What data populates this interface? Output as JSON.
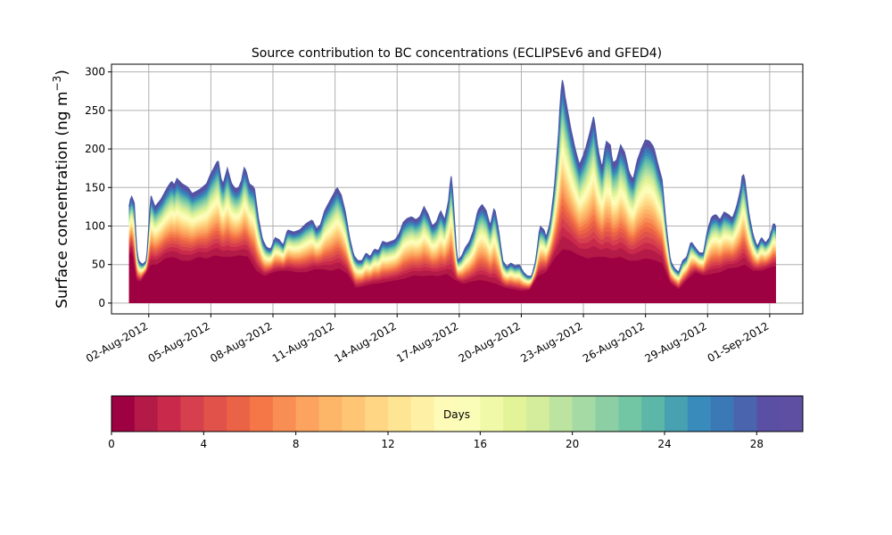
{
  "chart_data": {
    "type": "area",
    "title": "Source contribution to BC concentrations (ECLIPSEv6 and GFED4)",
    "ylabel_main": "Surface concentration (ng m",
    "ylabel_sup": "−3",
    "ylabel_close": ")",
    "xlabel": "",
    "ylim": [
      -14,
      310
    ],
    "xlim_days": [
      0.2,
      33.6
    ],
    "yticks": [
      0,
      50,
      100,
      150,
      200,
      250,
      300
    ],
    "xticks": [
      {
        "day": 2,
        "label": "02-Aug-2012"
      },
      {
        "day": 5,
        "label": "05-Aug-2012"
      },
      {
        "day": 8,
        "label": "08-Aug-2012"
      },
      {
        "day": 11,
        "label": "11-Aug-2012"
      },
      {
        "day": 14,
        "label": "14-Aug-2012"
      },
      {
        "day": 17,
        "label": "17-Aug-2012"
      },
      {
        "day": 20,
        "label": "20-Aug-2012"
      },
      {
        "day": 23,
        "label": "23-Aug-2012"
      },
      {
        "day": 26,
        "label": "26-Aug-2012"
      },
      {
        "day": 29,
        "label": "29-Aug-2012"
      },
      {
        "day": 32,
        "label": "01-Sep-2012"
      }
    ],
    "grid": true,
    "x_unit": "day of August 2012",
    "total": [
      [
        1.05,
        125
      ],
      [
        1.15,
        140
      ],
      [
        1.3,
        130
      ],
      [
        1.4,
        75
      ],
      [
        1.5,
        55
      ],
      [
        1.7,
        50
      ],
      [
        1.9,
        55
      ],
      [
        2.0,
        100
      ],
      [
        2.1,
        140
      ],
      [
        2.3,
        125
      ],
      [
        2.6,
        135
      ],
      [
        2.9,
        150
      ],
      [
        3.1,
        158
      ],
      [
        3.25,
        153
      ],
      [
        3.35,
        162
      ],
      [
        3.6,
        155
      ],
      [
        3.9,
        150
      ],
      [
        4.1,
        142
      ],
      [
        4.3,
        145
      ],
      [
        4.5,
        148
      ],
      [
        4.8,
        155
      ],
      [
        5.0,
        168
      ],
      [
        5.2,
        178
      ],
      [
        5.35,
        186
      ],
      [
        5.5,
        160
      ],
      [
        5.6,
        155
      ],
      [
        5.8,
        175
      ],
      [
        6.0,
        155
      ],
      [
        6.2,
        148
      ],
      [
        6.35,
        150
      ],
      [
        6.5,
        160
      ],
      [
        6.6,
        176
      ],
      [
        6.7,
        172
      ],
      [
        6.85,
        155
      ],
      [
        7.1,
        150
      ],
      [
        7.3,
        110
      ],
      [
        7.5,
        82
      ],
      [
        7.7,
        72
      ],
      [
        7.9,
        70
      ],
      [
        8.1,
        85
      ],
      [
        8.3,
        82
      ],
      [
        8.5,
        75
      ],
      [
        8.7,
        95
      ],
      [
        9.0,
        92
      ],
      [
        9.3,
        95
      ],
      [
        9.6,
        103
      ],
      [
        9.9,
        108
      ],
      [
        10.1,
        96
      ],
      [
        10.3,
        102
      ],
      [
        10.5,
        120
      ],
      [
        10.7,
        130
      ],
      [
        10.9,
        140
      ],
      [
        11.1,
        150
      ],
      [
        11.3,
        140
      ],
      [
        11.5,
        118
      ],
      [
        11.7,
        85
      ],
      [
        11.9,
        62
      ],
      [
        12.1,
        55
      ],
      [
        12.3,
        55
      ],
      [
        12.5,
        65
      ],
      [
        12.7,
        60
      ],
      [
        12.9,
        70
      ],
      [
        13.1,
        68
      ],
      [
        13.3,
        80
      ],
      [
        13.5,
        78
      ],
      [
        13.7,
        80
      ],
      [
        13.9,
        82
      ],
      [
        14.1,
        90
      ],
      [
        14.3,
        105
      ],
      [
        14.5,
        110
      ],
      [
        14.7,
        112
      ],
      [
        14.9,
        108
      ],
      [
        15.1,
        112
      ],
      [
        15.3,
        125
      ],
      [
        15.5,
        115
      ],
      [
        15.7,
        100
      ],
      [
        15.9,
        105
      ],
      [
        16.1,
        120
      ],
      [
        16.3,
        108
      ],
      [
        16.5,
        135
      ],
      [
        16.6,
        168
      ],
      [
        16.7,
        140
      ],
      [
        16.8,
        95
      ],
      [
        16.9,
        55
      ],
      [
        17.1,
        60
      ],
      [
        17.3,
        72
      ],
      [
        17.5,
        80
      ],
      [
        17.7,
        95
      ],
      [
        17.9,
        120
      ],
      [
        18.1,
        128
      ],
      [
        18.3,
        120
      ],
      [
        18.5,
        100
      ],
      [
        18.7,
        125
      ],
      [
        18.9,
        95
      ],
      [
        19.1,
        55
      ],
      [
        19.3,
        47
      ],
      [
        19.5,
        52
      ],
      [
        19.7,
        48
      ],
      [
        19.9,
        50
      ],
      [
        20.1,
        40
      ],
      [
        20.3,
        35
      ],
      [
        20.5,
        35
      ],
      [
        20.7,
        55
      ],
      [
        20.9,
        100
      ],
      [
        21.1,
        95
      ],
      [
        21.2,
        85
      ],
      [
        21.4,
        105
      ],
      [
        21.6,
        150
      ],
      [
        21.8,
        220
      ],
      [
        21.9,
        270
      ],
      [
        22.0,
        292
      ],
      [
        22.1,
        270
      ],
      [
        22.2,
        255
      ],
      [
        22.4,
        225
      ],
      [
        22.6,
        200
      ],
      [
        22.8,
        180
      ],
      [
        22.9,
        185
      ],
      [
        23.1,
        200
      ],
      [
        23.3,
        220
      ],
      [
        23.5,
        243
      ],
      [
        23.7,
        200
      ],
      [
        23.9,
        175
      ],
      [
        24.1,
        210
      ],
      [
        24.3,
        205
      ],
      [
        24.4,
        182
      ],
      [
        24.6,
        185
      ],
      [
        24.8,
        205
      ],
      [
        25.0,
        195
      ],
      [
        25.2,
        170
      ],
      [
        25.4,
        160
      ],
      [
        25.6,
        185
      ],
      [
        25.8,
        200
      ],
      [
        26.0,
        212
      ],
      [
        26.2,
        210
      ],
      [
        26.4,
        202
      ],
      [
        26.6,
        180
      ],
      [
        26.8,
        160
      ],
      [
        27.0,
        100
      ],
      [
        27.2,
        55
      ],
      [
        27.4,
        45
      ],
      [
        27.6,
        40
      ],
      [
        27.8,
        55
      ],
      [
        28.0,
        60
      ],
      [
        28.2,
        80
      ],
      [
        28.4,
        72
      ],
      [
        28.6,
        65
      ],
      [
        28.8,
        65
      ],
      [
        29.0,
        95
      ],
      [
        29.2,
        112
      ],
      [
        29.4,
        115
      ],
      [
        29.6,
        108
      ],
      [
        29.8,
        118
      ],
      [
        30.0,
        115
      ],
      [
        30.2,
        110
      ],
      [
        30.4,
        125
      ],
      [
        30.6,
        148
      ],
      [
        30.7,
        170
      ],
      [
        30.8,
        160
      ],
      [
        31.0,
        115
      ],
      [
        31.2,
        88
      ],
      [
        31.4,
        73
      ],
      [
        31.6,
        85
      ],
      [
        31.8,
        78
      ],
      [
        32.0,
        85
      ],
      [
        32.2,
        105
      ],
      [
        32.3,
        98
      ]
    ],
    "base": [
      [
        1.05,
        63
      ],
      [
        1.2,
        68
      ],
      [
        1.4,
        30
      ],
      [
        1.6,
        28
      ],
      [
        1.9,
        40
      ],
      [
        2.1,
        50
      ],
      [
        2.4,
        50
      ],
      [
        2.8,
        58
      ],
      [
        3.2,
        60
      ],
      [
        3.6,
        55
      ],
      [
        4.0,
        55
      ],
      [
        4.4,
        60
      ],
      [
        4.8,
        58
      ],
      [
        5.2,
        62
      ],
      [
        5.6,
        60
      ],
      [
        6.0,
        60
      ],
      [
        6.4,
        62
      ],
      [
        6.8,
        60
      ],
      [
        7.2,
        42
      ],
      [
        7.6,
        35
      ],
      [
        8.0,
        40
      ],
      [
        8.4,
        42
      ],
      [
        8.8,
        42
      ],
      [
        9.2,
        40
      ],
      [
        9.6,
        40
      ],
      [
        10.0,
        44
      ],
      [
        10.4,
        44
      ],
      [
        10.8,
        42
      ],
      [
        11.2,
        45
      ],
      [
        11.6,
        38
      ],
      [
        12.0,
        20
      ],
      [
        12.4,
        22
      ],
      [
        12.8,
        25
      ],
      [
        13.2,
        26
      ],
      [
        13.6,
        28
      ],
      [
        14.0,
        30
      ],
      [
        14.4,
        32
      ],
      [
        14.8,
        36
      ],
      [
        15.2,
        35
      ],
      [
        15.6,
        36
      ],
      [
        16.0,
        35
      ],
      [
        16.4,
        38
      ],
      [
        16.8,
        30
      ],
      [
        17.2,
        25
      ],
      [
        17.6,
        28
      ],
      [
        18.0,
        30
      ],
      [
        18.4,
        28
      ],
      [
        18.8,
        25
      ],
      [
        19.2,
        20
      ],
      [
        19.6,
        18
      ],
      [
        20.0,
        16
      ],
      [
        20.4,
        17
      ],
      [
        20.8,
        35
      ],
      [
        21.2,
        40
      ],
      [
        21.6,
        58
      ],
      [
        22.0,
        70
      ],
      [
        22.4,
        68
      ],
      [
        22.8,
        62
      ],
      [
        23.2,
        58
      ],
      [
        23.6,
        60
      ],
      [
        24.0,
        60
      ],
      [
        24.4,
        58
      ],
      [
        24.8,
        60
      ],
      [
        25.2,
        55
      ],
      [
        25.6,
        55
      ],
      [
        26.0,
        58
      ],
      [
        26.4,
        56
      ],
      [
        26.8,
        52
      ],
      [
        27.2,
        26
      ],
      [
        27.6,
        18
      ],
      [
        28.0,
        30
      ],
      [
        28.4,
        40
      ],
      [
        28.8,
        36
      ],
      [
        29.2,
        38
      ],
      [
        29.6,
        40
      ],
      [
        30.0,
        45
      ],
      [
        30.4,
        46
      ],
      [
        30.8,
        50
      ],
      [
        31.2,
        42
      ],
      [
        31.6,
        42
      ],
      [
        32.0,
        46
      ],
      [
        32.3,
        48
      ]
    ],
    "colorbar": {
      "label": "Days",
      "min": 0,
      "max": 30,
      "ticks": [
        0,
        4,
        8,
        12,
        16,
        20,
        24,
        28
      ],
      "colors": [
        "#9e0142",
        "#b41a47",
        "#c92a4b",
        "#d6404e",
        "#e1524a",
        "#eb6346",
        "#f57748",
        "#f88e53",
        "#fba35f",
        "#fdb567",
        "#fec574",
        "#fed684",
        "#fee593",
        "#fef1a6",
        "#fefab7",
        "#fafdb8",
        "#f0f9a8",
        "#e3f498",
        "#d3ed9c",
        "#bce4a0",
        "#a5daa4",
        "#8ccfa5",
        "#73c6a4",
        "#5cb7a9",
        "#48a1b1",
        "#388bbb",
        "#3b79b6",
        "#4a64ad",
        "#5a4fa3",
        "#5e4fa2"
      ]
    }
  }
}
